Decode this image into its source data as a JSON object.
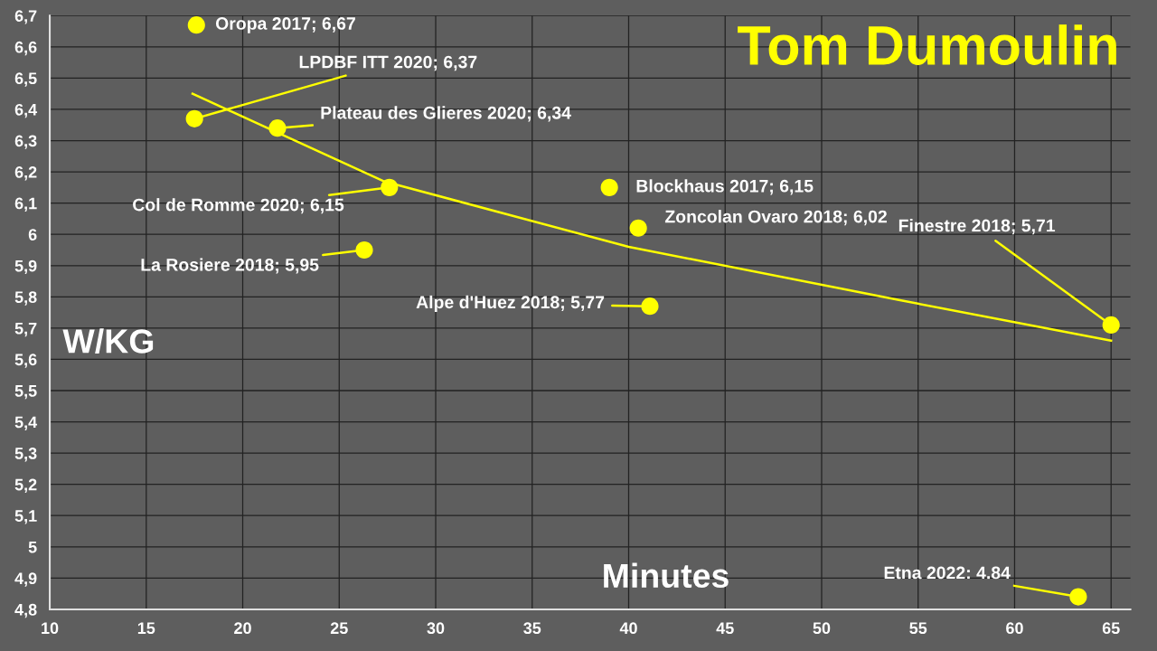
{
  "chart_data": {
    "type": "scatter",
    "title": "Tom Dumoulin",
    "xlabel": "Minutes",
    "ylabel": "W/KG",
    "xlim": [
      10,
      66
    ],
    "xticks": [
      10,
      15,
      20,
      25,
      30,
      35,
      40,
      45,
      50,
      55,
      60,
      65
    ],
    "ylim": [
      4.8,
      6.7
    ],
    "yticks": [
      {
        "value": 4.8,
        "label": "4,8"
      },
      {
        "value": 4.9,
        "label": "4,9"
      },
      {
        "value": 5,
        "label": "5"
      },
      {
        "value": 5.1,
        "label": "5,1"
      },
      {
        "value": 5.2,
        "label": "5,2"
      },
      {
        "value": 5.3,
        "label": "5,3"
      },
      {
        "value": 5.4,
        "label": "5,4"
      },
      {
        "value": 5.5,
        "label": "5,5"
      },
      {
        "value": 5.6,
        "label": "5,6"
      },
      {
        "value": 5.7,
        "label": "5,7"
      },
      {
        "value": 5.8,
        "label": "5,8"
      },
      {
        "value": 5.9,
        "label": "5,9"
      },
      {
        "value": 6,
        "label": "6"
      },
      {
        "value": 6.1,
        "label": "6,1"
      },
      {
        "value": 6.2,
        "label": "6,2"
      },
      {
        "value": 6.3,
        "label": "6,3"
      },
      {
        "value": 6.4,
        "label": "6,4"
      },
      {
        "value": 6.5,
        "label": "6,5"
      },
      {
        "value": 6.6,
        "label": "6,6"
      },
      {
        "value": 6.7,
        "label": "6,7"
      }
    ],
    "grid": true,
    "series": [
      {
        "color": "#ffff00",
        "marker": "circle",
        "x": [
          17.6,
          17.5,
          21.8,
          27.6,
          26.3,
          39.0,
          40.5,
          41.1,
          65.0,
          63.3
        ],
        "values": [
          6.67,
          6.37,
          6.34,
          6.15,
          5.95,
          6.15,
          6.02,
          5.77,
          5.71,
          4.84
        ]
      },
      {
        "type": "line",
        "color": "#ffff00",
        "x": [
          17.4,
          27.3,
          40.0,
          54.0,
          65.0
        ],
        "values": [
          6.45,
          6.17,
          5.96,
          5.79,
          5.66
        ]
      }
    ],
    "annotations": [
      {
        "text": "Oropa 2017; 6,67",
        "x": 17.6,
        "y": 6.67
      },
      {
        "text": "LPDBF ITT 2020; 6,37",
        "x": 17.5,
        "y": 6.37
      },
      {
        "text": "Plateau des Glieres 2020; 6,34",
        "x": 21.8,
        "y": 6.34
      },
      {
        "text": "Col de Romme 2020; 6,15",
        "x": 27.6,
        "y": 6.15
      },
      {
        "text": "La Rosiere 2018; 5,95",
        "x": 26.3,
        "y": 5.95
      },
      {
        "text": "Blockhaus 2017; 6,15",
        "x": 39.0,
        "y": 6.15
      },
      {
        "text": "Zoncolan Ovaro 2018; 6,02",
        "x": 40.5,
        "y": 6.02
      },
      {
        "text": "Alpe d'Huez 2018; 5,77",
        "x": 41.1,
        "y": 5.77
      },
      {
        "text": "Finestre 2018; 5,71",
        "x": 65.0,
        "y": 5.71
      },
      {
        "text": "Etna 2022: 4.84",
        "x": 63.3,
        "y": 4.84
      }
    ]
  }
}
